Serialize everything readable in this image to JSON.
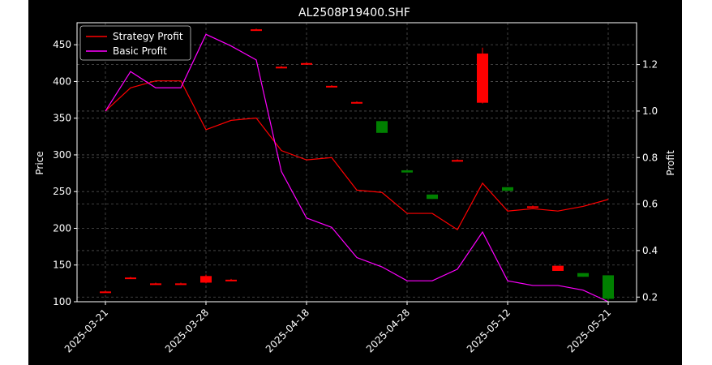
{
  "chart_data": {
    "type": "candlestick+line",
    "title": "AL2508P19400.SHF",
    "xlabel": "",
    "ylabel_left": "Price",
    "ylabel_right": "Profit",
    "ylim_left": [
      100,
      480
    ],
    "ylim_right": [
      0.18,
      1.38
    ],
    "yticks_left": [
      100,
      150,
      200,
      250,
      300,
      350,
      400,
      450
    ],
    "yticks_right": [
      0.2,
      0.4,
      0.6,
      0.8,
      1.0,
      1.2
    ],
    "xtick_labels": [
      "2025-03-21",
      "2025-03-28",
      "2025-04-18",
      "2025-04-28",
      "2025-05-12",
      "2025-05-21"
    ],
    "xtick_index": [
      0,
      4,
      8,
      12,
      16,
      20
    ],
    "grid": true,
    "legend_position": "top-left",
    "legend": [
      {
        "name": "Strategy Profit",
        "color": "#ff0000"
      },
      {
        "name": "Basic Profit",
        "color": "#ff00ff"
      }
    ],
    "candles": [
      {
        "o": 114,
        "c": 114,
        "h": 115,
        "l": 113,
        "color": "#ff0000"
      },
      {
        "o": 133,
        "c": 133,
        "h": 134,
        "l": 132,
        "color": "#ff0000"
      },
      {
        "o": 125,
        "c": 125,
        "h": 126,
        "l": 124,
        "color": "#ff0000"
      },
      {
        "o": 125,
        "c": 125,
        "h": 126,
        "l": 124,
        "color": "#ff0000"
      },
      {
        "o": 135,
        "c": 126,
        "h": 137,
        "l": 125,
        "color": "#ff0000"
      },
      {
        "o": 130,
        "c": 130,
        "h": 131,
        "l": 129,
        "color": "#ff0000"
      },
      {
        "o": 471,
        "c": 471,
        "h": 472,
        "l": 470,
        "color": "#ff0000"
      },
      {
        "o": 420,
        "c": 420,
        "h": 421,
        "l": 419,
        "color": "#ff0000"
      },
      {
        "o": 425,
        "c": 425,
        "h": 426,
        "l": 424,
        "color": "#ff0000"
      },
      {
        "o": 394,
        "c": 394,
        "h": 395,
        "l": 393,
        "color": "#ff0000"
      },
      {
        "o": 372,
        "c": 372,
        "h": 373,
        "l": 371,
        "color": "#ff0000"
      },
      {
        "o": 330,
        "c": 346,
        "h": 346,
        "l": 330,
        "color": "#008000"
      },
      {
        "o": 276,
        "c": 279,
        "h": 279,
        "l": 276,
        "color": "#008000"
      },
      {
        "o": 240,
        "c": 246,
        "h": 246,
        "l": 240,
        "color": "#008000"
      },
      {
        "o": 293,
        "c": 293,
        "h": 294,
        "l": 292,
        "color": "#ff0000"
      },
      {
        "o": 438,
        "c": 371,
        "h": 446,
        "l": 370,
        "color": "#ff0000"
      },
      {
        "o": 251,
        "c": 256,
        "h": 256,
        "l": 251,
        "color": "#008000"
      },
      {
        "o": 230,
        "c": 230,
        "h": 231,
        "l": 229,
        "color": "#ff0000"
      },
      {
        "o": 149,
        "c": 142,
        "h": 149,
        "l": 142,
        "color": "#ff0000"
      },
      {
        "o": 134,
        "c": 139,
        "h": 139,
        "l": 134,
        "color": "#008000"
      },
      {
        "o": 104,
        "c": 136,
        "h": 136,
        "l": 101,
        "color": "#008000"
      }
    ],
    "series": [
      {
        "name": "Strategy Profit",
        "color": "#ff0000",
        "values": [
          1.0,
          1.1,
          1.13,
          1.13,
          0.92,
          0.96,
          0.97,
          0.83,
          0.79,
          0.8,
          0.66,
          0.65,
          0.56,
          0.56,
          0.49,
          0.69,
          0.57,
          0.58,
          0.57,
          0.59,
          0.62
        ]
      },
      {
        "name": "Basic Profit",
        "color": "#ff00ff",
        "values": [
          1.0,
          1.17,
          1.1,
          1.1,
          1.33,
          1.28,
          1.22,
          0.74,
          0.54,
          0.5,
          0.37,
          0.33,
          0.27,
          0.27,
          0.32,
          0.48,
          0.27,
          0.25,
          0.25,
          0.23,
          0.18
        ]
      }
    ]
  }
}
